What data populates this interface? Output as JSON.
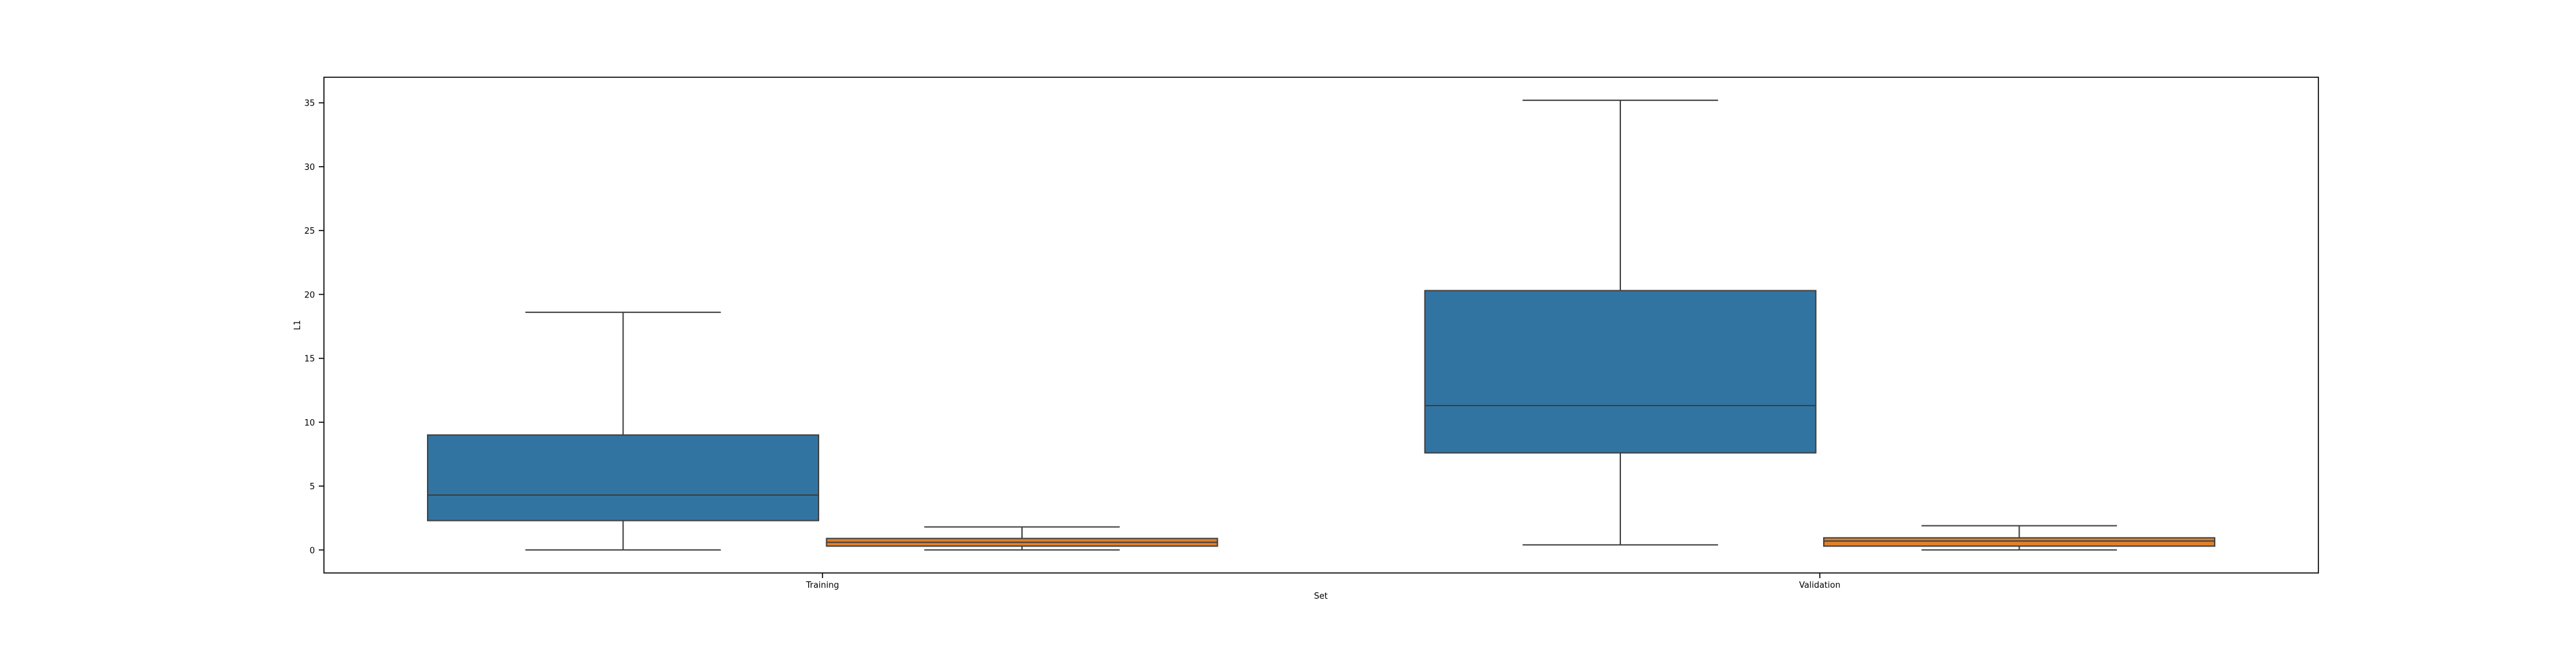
{
  "chart_data": {
    "type": "box",
    "xlabel": "Set",
    "ylabel": "L1",
    "categories": [
      "Training",
      "Validation"
    ],
    "ylim": [
      -1.8,
      37.0
    ],
    "yticks": [
      0,
      5,
      10,
      15,
      20,
      25,
      30,
      35
    ],
    "grid": false,
    "series": [
      {
        "color": "#3274a1",
        "boxes": [
          {
            "category": "Training",
            "whisker_low": 0.0,
            "q1": 2.3,
            "median": 4.3,
            "q3": 9.0,
            "whisker_high": 18.6
          },
          {
            "category": "Validation",
            "whisker_low": 0.4,
            "q1": 7.6,
            "median": 11.3,
            "q3": 20.3,
            "whisker_high": 35.2
          }
        ]
      },
      {
        "color": "#e1812c",
        "boxes": [
          {
            "category": "Training",
            "whisker_low": 0.0,
            "q1": 0.3,
            "median": 0.6,
            "q3": 0.9,
            "whisker_high": 1.8
          },
          {
            "category": "Validation",
            "whisker_low": 0.0,
            "q1": 0.3,
            "median": 0.7,
            "q3": 0.95,
            "whisker_high": 1.9
          }
        ]
      }
    ]
  }
}
